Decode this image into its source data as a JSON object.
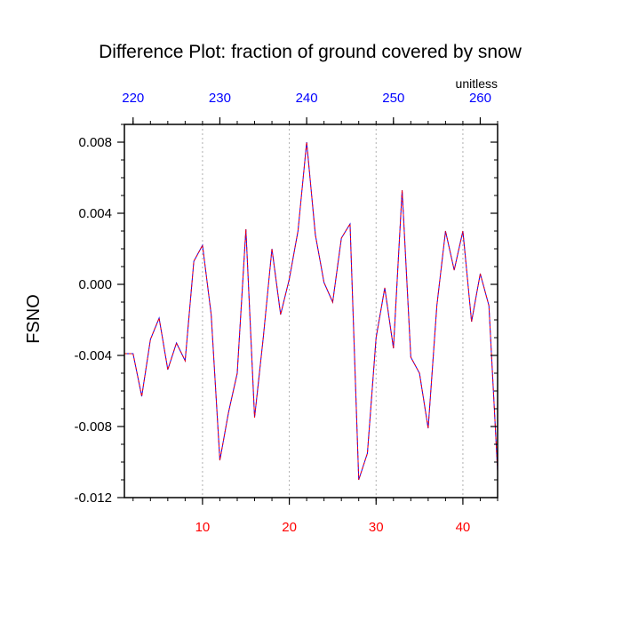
{
  "chart_data": {
    "type": "line",
    "title": "Difference Plot: fraction of ground covered by snow",
    "ylabel": "FSNO",
    "units_label": "unitless",
    "ylim": [
      -0.012,
      0.009
    ],
    "xlim": [
      1,
      44
    ],
    "yticks": [
      "0.008",
      "0.004",
      "0.000",
      "-0.004",
      "-0.008",
      "-0.012"
    ],
    "ytick_values": [
      0.008,
      0.004,
      0.0,
      -0.004,
      -0.008,
      -0.012
    ],
    "xticks_bottom": [
      "10",
      "20",
      "30",
      "40"
    ],
    "xtick_bottom_values": [
      10,
      20,
      30,
      40
    ],
    "xticks_top": [
      "220",
      "230",
      "240",
      "250",
      "260"
    ],
    "xtick_top_values": [
      2,
      12,
      22,
      32,
      42
    ],
    "bottom_tick_color": "#ff0000",
    "top_tick_color": "#0000ff",
    "line_colors": [
      "#0000ff",
      "#ff0000"
    ],
    "grid": "vertical dashed at major ticks",
    "x": [
      1,
      2,
      3,
      4,
      5,
      6,
      7,
      8,
      9,
      10,
      11,
      12,
      13,
      14,
      15,
      16,
      17,
      18,
      19,
      20,
      21,
      22,
      23,
      24,
      25,
      26,
      27,
      28,
      29,
      30,
      31,
      32,
      33,
      34,
      35,
      36,
      37,
      38,
      39,
      40,
      41,
      42,
      43,
      44
    ],
    "series": [
      {
        "values": [
          -0.0039,
          -0.0039,
          -0.0063,
          -0.0031,
          -0.0019,
          -0.0048,
          -0.0033,
          -0.0043,
          0.0013,
          0.0022,
          -0.0017,
          -0.0099,
          -0.0072,
          -0.005,
          0.0031,
          -0.0075,
          -0.003,
          0.002,
          -0.0017,
          0.0003,
          0.003,
          0.008,
          0.0028,
          0.0001,
          -0.001,
          0.0026,
          0.0034,
          -0.011,
          -0.0095,
          -0.003,
          -0.0002,
          -0.0036,
          0.0053,
          -0.0041,
          -0.005,
          -0.0081,
          -0.0012,
          0.003,
          0.0008,
          0.003,
          -0.0021,
          0.0006,
          -0.0012,
          -0.0105
        ]
      }
    ]
  }
}
